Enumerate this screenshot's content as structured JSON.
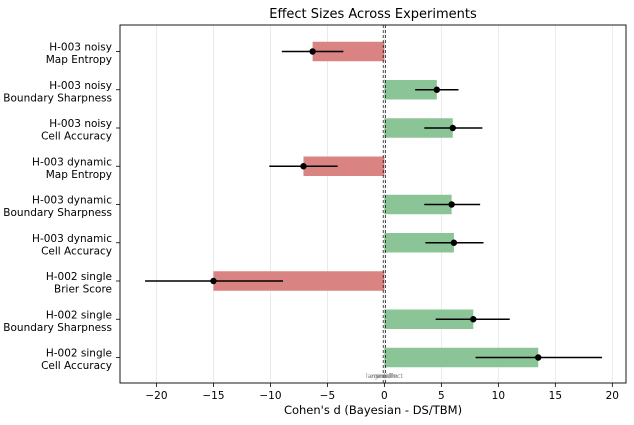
{
  "chart_data": {
    "type": "bar",
    "orientation": "horizontal",
    "title": "Effect Sizes Across Experiments",
    "xlabel": "Cohen's d (Bayesian - DS/TBM)",
    "ylabel": "",
    "xlim": [
      -23.2,
      21.2
    ],
    "xticks": [
      -20,
      -15,
      -10,
      -5,
      0,
      5,
      10,
      15,
      20
    ],
    "grid": "vertical",
    "zero_line": true,
    "colors": {
      "negative": "#d98383",
      "positive": "#8bc597",
      "marker": "#000000"
    },
    "categories": [
      [
        "H-003 noisy",
        "Map Entropy"
      ],
      [
        "H-003 noisy",
        "Boundary Sharpness"
      ],
      [
        "H-003 noisy",
        "Cell Accuracy"
      ],
      [
        "H-003 dynamic",
        "Map Entropy"
      ],
      [
        "H-003 dynamic",
        "Boundary Sharpness"
      ],
      [
        "H-003 dynamic",
        "Cell Accuracy"
      ],
      [
        "H-002 single",
        "Brier Score"
      ],
      [
        "H-002 single",
        "Boundary Sharpness"
      ],
      [
        "H-002 single",
        "Cell Accuracy"
      ]
    ],
    "values": [
      -6.3,
      4.6,
      6.0,
      -7.1,
      5.9,
      6.1,
      -15.0,
      7.8,
      13.5
    ],
    "ci_low": [
      -9.0,
      2.7,
      3.5,
      -10.1,
      3.5,
      3.6,
      -21.0,
      4.5,
      8.0
    ],
    "ci_high": [
      -3.6,
      6.5,
      8.6,
      -4.1,
      8.4,
      8.7,
      -8.9,
      11.0,
      19.1
    ],
    "annotations": [
      "small",
      "medium",
      "large effect"
    ]
  }
}
